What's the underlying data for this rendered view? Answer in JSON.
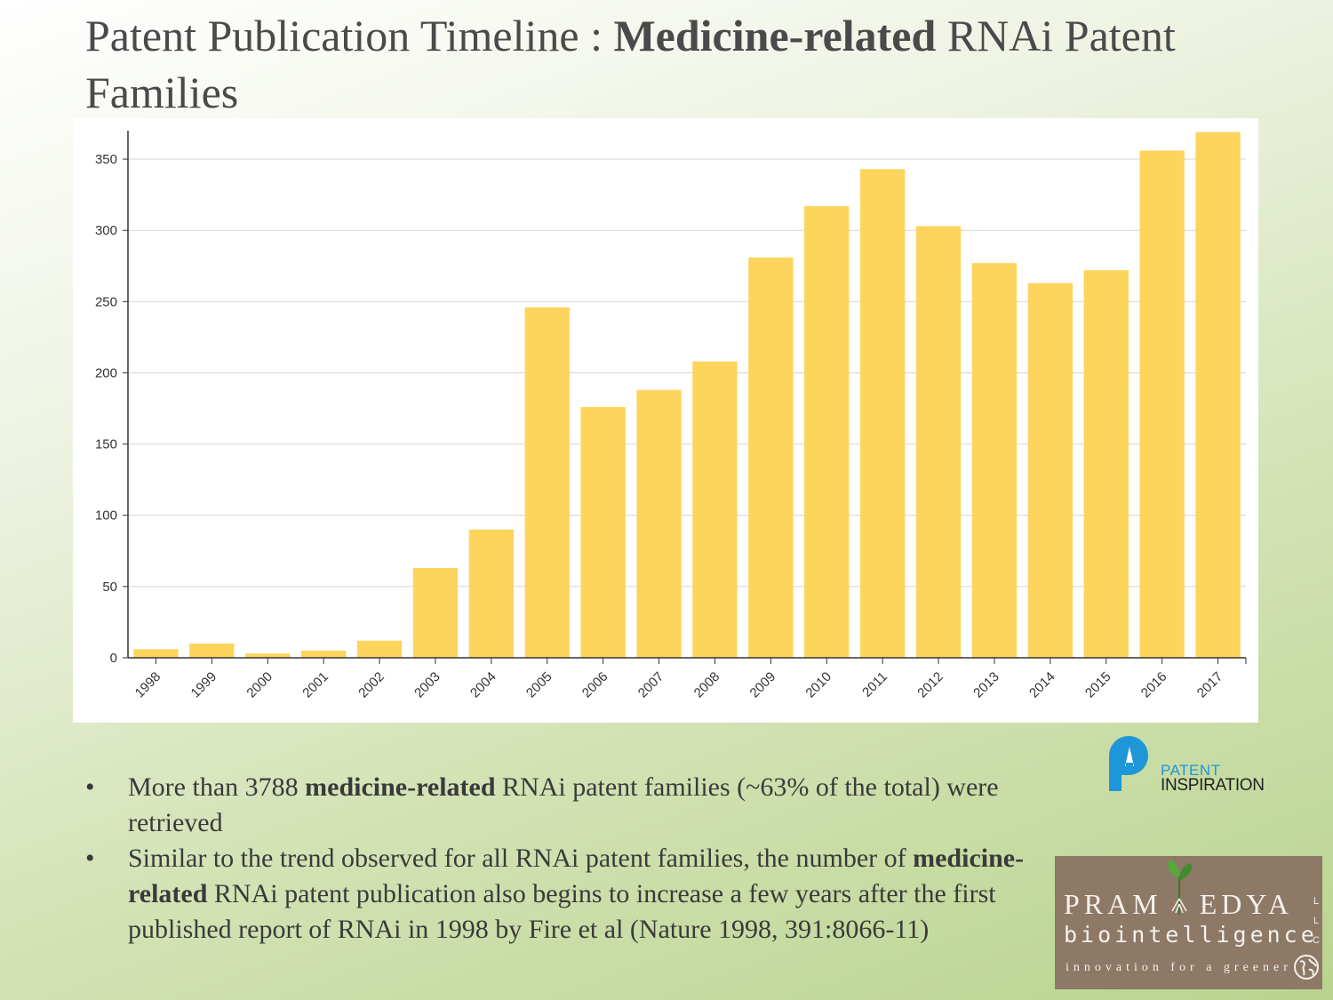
{
  "slide": {
    "title_part1": "Patent Publication Timeline : ",
    "title_bold": "Medicine-related",
    "title_part2": " RNAi Patent Families"
  },
  "chart_data": {
    "type": "bar",
    "categories": [
      "1998",
      "1999",
      "2000",
      "2001",
      "2002",
      "2003",
      "2004",
      "2005",
      "2006",
      "2007",
      "2008",
      "2009",
      "2010",
      "2011",
      "2012",
      "2013",
      "2014",
      "2015",
      "2016",
      "2017"
    ],
    "values": [
      6,
      10,
      3,
      5,
      12,
      63,
      90,
      246,
      176,
      188,
      208,
      281,
      317,
      343,
      303,
      277,
      263,
      272,
      356,
      369
    ],
    "title": "",
    "xlabel": "",
    "ylabel": "",
    "ylim": [
      0,
      370
    ],
    "yticks": [
      0,
      50,
      100,
      150,
      200,
      250,
      300,
      350
    ],
    "grid": true,
    "colors": {
      "bar": "#fdd45c",
      "grid": "#d4d4d4",
      "axis": "#333333"
    }
  },
  "bullets": [
    {
      "marker": "•",
      "before": "More than 3788 ",
      "bold": "medicine-related",
      "after": " RNAi patent families (~63% of the total) were retrieved"
    },
    {
      "marker": "•",
      "before": "Similar to the trend observed for all RNAi patent families, the number of ",
      "bold": "medicine-related",
      "after": " RNAi patent publication also begins to increase a few years after the first published report of RNAi in 1998 by Fire et al (Nature 1998, 391:8066-11)"
    }
  ],
  "logos": {
    "patent_inspiration": {
      "line1": "PATENT",
      "line2": "INSPIRATION",
      "color": "#1e96d8",
      "icon": "patent-inspiration-icon"
    },
    "pramoedya": {
      "name_left": "PRAM",
      "name_right": "EDYA",
      "subtitle": "biointelligence",
      "tagline": "innovation for a greener",
      "suffix": "LLC",
      "background": "#8e7866",
      "icons": [
        "sprout-icon",
        "globe-icon"
      ]
    }
  }
}
